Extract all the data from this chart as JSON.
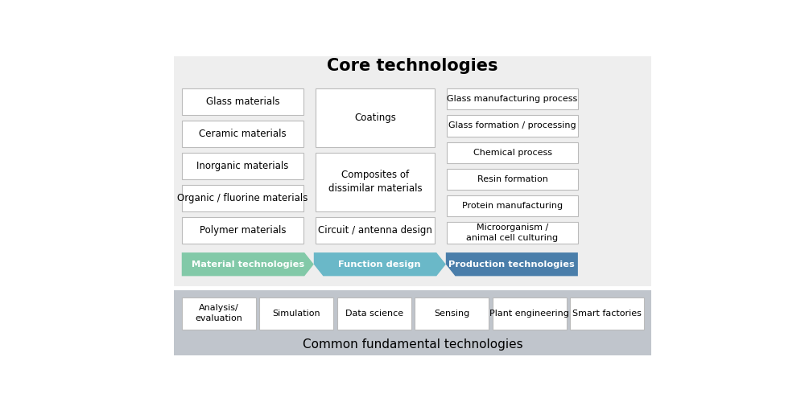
{
  "title": "Core technologies",
  "bg_top": "#eeeeee",
  "bg_bottom": "#c0c5cc",
  "white": "#ffffff",
  "box_edge": "#bbbbbb",
  "arrow_colors": [
    "#82c9a8",
    "#6ab8c8",
    "#4a7eaa"
  ],
  "arrow_labels": [
    "Material technologies",
    "Function design",
    "Production technologies"
  ],
  "col1_boxes": [
    "Glass materials",
    "Ceramic materials",
    "Inorganic materials",
    "Organic / fluorine materials",
    "Polymer materials"
  ],
  "col2_boxes": [
    "Coatings",
    "Composites of\ndissimilar materials",
    "Circuit / antenna design"
  ],
  "col3_boxes": [
    "Glass manufacturing process",
    "Glass formation / processing",
    "Chemical process",
    "Resin formation",
    "Protein manufacturing",
    "Microorganism /\nanimal cell culturing"
  ],
  "bottom_title": "Common fundamental technologies",
  "bottom_boxes": [
    "Analysis/\nevaluation",
    "Simulation",
    "Data science",
    "Sensing",
    "Plant engineering",
    "Smart factories"
  ]
}
